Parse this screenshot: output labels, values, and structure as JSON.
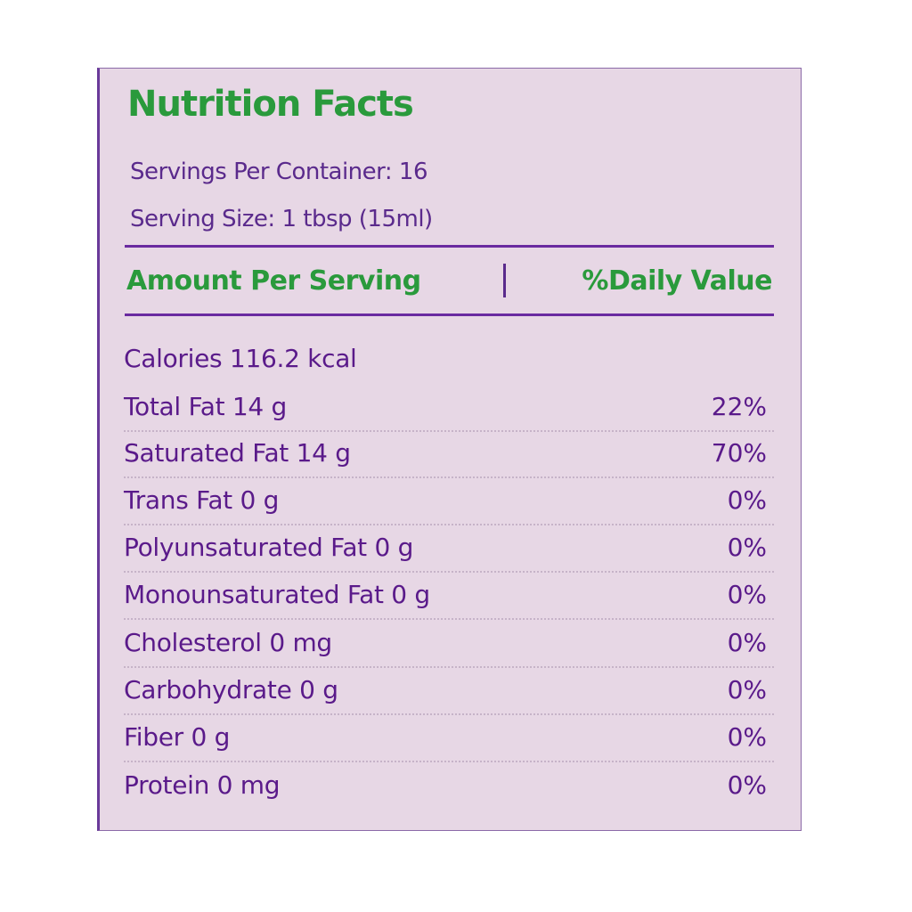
{
  "label": {
    "title": "Nutrition Facts",
    "servings_per_container": "Servings Per Container: 16",
    "serving_size": "Serving Size: 1 tbsp (15ml)",
    "header_amount": "Amount Per Serving",
    "header_daily_value": "%Daily Value",
    "rows": [
      {
        "name": "Calories 116.2 kcal",
        "pct": ""
      },
      {
        "name": "Total Fat 14 g",
        "pct": "22%"
      },
      {
        "name": "Saturated Fat 14 g",
        "pct": "70%"
      },
      {
        "name": "Trans Fat 0 g",
        "pct": "0%"
      },
      {
        "name": "Polyunsaturated Fat 0 g",
        "pct": "0%"
      },
      {
        "name": "Monounsaturated Fat 0 g",
        "pct": "0%"
      },
      {
        "name": "Cholesterol 0 mg",
        "pct": "0%"
      },
      {
        "name": "Carbohydrate 0 g",
        "pct": "0%"
      },
      {
        "name": "Fiber 0 g",
        "pct": "0%"
      },
      {
        "name": "Protein 0 mg",
        "pct": "0%"
      }
    ]
  },
  "colors": {
    "background": "#e7d7e5",
    "title_green": "#2a9a3c",
    "text_purple": "#5a1a8a",
    "rule_purple": "#6a2aa0"
  }
}
